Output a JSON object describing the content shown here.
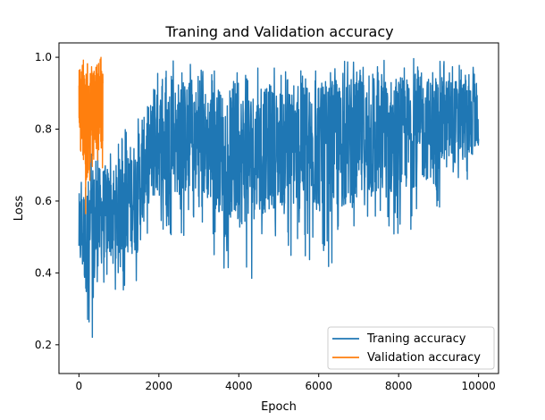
{
  "chart_data": {
    "type": "line",
    "title": "Traning and Validation accuracy",
    "xlabel": "Epoch",
    "ylabel": "Loss",
    "xlim": [
      -500,
      10500
    ],
    "ylim": [
      0.12,
      1.04
    ],
    "x_ticks": [
      0,
      2000,
      4000,
      6000,
      8000,
      10000
    ],
    "y_ticks": [
      0.2,
      0.4,
      0.6,
      0.8,
      1.0
    ],
    "x_tick_labels": [
      "0",
      "2000",
      "4000",
      "6000",
      "8000",
      "10000"
    ],
    "y_tick_labels": [
      "0.2",
      "0.4",
      "0.6",
      "0.8",
      "1.0"
    ],
    "grid": false,
    "legend_position": "lower-right",
    "series": [
      {
        "name": "Traning accuracy",
        "color": "#1f77b4",
        "x": [
          0,
          300,
          600,
          900,
          1200,
          1500,
          1700,
          2000,
          2500,
          3000,
          4000,
          5000,
          6000,
          7000,
          8000,
          9000,
          10000
        ],
        "low": [
          0.34,
          0.16,
          0.34,
          0.34,
          0.34,
          0.34,
          0.48,
          0.5,
          0.5,
          0.5,
          0.35,
          0.45,
          0.41,
          0.44,
          0.48,
          0.58,
          0.66
        ],
        "high": [
          0.66,
          0.75,
          0.75,
          0.75,
          0.81,
          0.84,
          0.91,
          0.97,
          1.0,
          0.97,
          0.97,
          0.97,
          0.97,
          1.0,
          1.0,
          1.0,
          0.97
        ],
        "center": [
          0.5,
          0.48,
          0.55,
          0.56,
          0.58,
          0.6,
          0.72,
          0.74,
          0.75,
          0.75,
          0.74,
          0.75,
          0.75,
          0.76,
          0.78,
          0.79,
          0.82
        ]
      },
      {
        "name": "Validation accuracy",
        "color": "#ff7f0e",
        "x": [
          0,
          100,
          200,
          300,
          400,
          500,
          600
        ],
        "low": [
          0.75,
          0.69,
          0.5,
          0.69,
          0.69,
          0.69,
          0.69
        ],
        "high": [
          1.0,
          1.0,
          1.0,
          1.0,
          1.0,
          1.0,
          1.0
        ],
        "center": [
          0.87,
          0.85,
          0.8,
          0.84,
          0.85,
          0.86,
          0.85
        ]
      }
    ]
  }
}
